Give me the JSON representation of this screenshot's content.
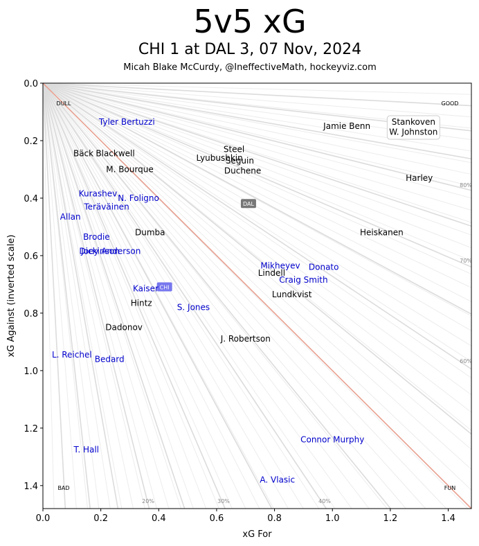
{
  "header": {
    "title": "5v5 xG",
    "subtitle": "CHI 1 at DAL 3, 07 Nov, 2024",
    "byline": "Micah Blake McCurdy, @IneffectiveMath, hockeyviz.com"
  },
  "colors": {
    "home": "#000000",
    "away": "#0000cc",
    "diagonal": "#e8a090",
    "grid": "#dcdcdc",
    "dal_badge": "#777777",
    "chi_badge": "#7777ee"
  },
  "chart_data": {
    "type": "scatter",
    "xlabel": "xG For",
    "ylabel": "xG Against (inverted scale)",
    "xlim": [
      0,
      1.48
    ],
    "ylim": [
      0,
      1.48
    ],
    "y_inverted": true,
    "xticks": [
      "0.0",
      "0.2",
      "0.4",
      "0.6",
      "0.8",
      "1.0",
      "1.2",
      "1.4"
    ],
    "yticks": [
      "0.0",
      "0.2",
      "0.4",
      "0.6",
      "0.8",
      "1.0",
      "1.2",
      "1.4"
    ],
    "corner_labels": {
      "top_left": "DULL",
      "top_right": "GOOD",
      "bottom_left": "BAD",
      "bottom_right": "FUN"
    },
    "percent_labels": [
      "80%",
      "70%",
      "60%",
      "40%",
      "30%",
      "20%"
    ],
    "teams": [
      {
        "name": "DAL",
        "x": 0.71,
        "y": 0.42
      },
      {
        "name": "CHI",
        "x": 0.42,
        "y": 0.71
      }
    ],
    "series": [
      {
        "name": "DAL",
        "points": [
          {
            "label": "Jamie Benn",
            "x": 1.05,
            "y": 0.15
          },
          {
            "label": "Stankoven",
            "x": 1.28,
            "y": 0.135
          },
          {
            "label": "W. Johnston",
            "x": 1.28,
            "y": 0.17
          },
          {
            "label": "Bäck",
            "x": 0.14,
            "y": 0.245
          },
          {
            "label": "Blackwell",
            "x": 0.25,
            "y": 0.245
          },
          {
            "label": "Steel",
            "x": 0.66,
            "y": 0.23
          },
          {
            "label": "Lyubushkin",
            "x": 0.61,
            "y": 0.26
          },
          {
            "label": "Seguin",
            "x": 0.68,
            "y": 0.27
          },
          {
            "label": "Duchene",
            "x": 0.69,
            "y": 0.305
          },
          {
            "label": "M. Bourque",
            "x": 0.3,
            "y": 0.3
          },
          {
            "label": "Harley",
            "x": 1.3,
            "y": 0.33
          },
          {
            "label": "Heiskanen",
            "x": 1.17,
            "y": 0.52
          },
          {
            "label": "Dumba",
            "x": 0.37,
            "y": 0.52
          },
          {
            "label": "Lindell",
            "x": 0.79,
            "y": 0.66
          },
          {
            "label": "Lundkvist",
            "x": 0.86,
            "y": 0.735
          },
          {
            "label": "Hintz",
            "x": 0.34,
            "y": 0.765
          },
          {
            "label": "Dadonov",
            "x": 0.28,
            "y": 0.85
          },
          {
            "label": "J. Robertson",
            "x": 0.7,
            "y": 0.89
          }
        ]
      },
      {
        "name": "CHI",
        "points": [
          {
            "label": "Tyler Bertuzzi",
            "x": 0.29,
            "y": 0.135
          },
          {
            "label": "Kurashev",
            "x": 0.19,
            "y": 0.385
          },
          {
            "label": "N. Foligno",
            "x": 0.33,
            "y": 0.4
          },
          {
            "label": "Teräväinen",
            "x": 0.22,
            "y": 0.43
          },
          {
            "label": "Allan",
            "x": 0.095,
            "y": 0.465
          },
          {
            "label": "Brodie",
            "x": 0.185,
            "y": 0.535
          },
          {
            "label": "Dickinson",
            "x": 0.195,
            "y": 0.585
          },
          {
            "label": "Joey Anderson",
            "x": 0.235,
            "y": 0.585
          },
          {
            "label": "Mikheyev",
            "x": 0.82,
            "y": 0.635
          },
          {
            "label": "Donato",
            "x": 0.97,
            "y": 0.64
          },
          {
            "label": "Craig Smith",
            "x": 0.9,
            "y": 0.685
          },
          {
            "label": "Kaiser",
            "x": 0.355,
            "y": 0.715
          },
          {
            "label": "S. Jones",
            "x": 0.52,
            "y": 0.78
          },
          {
            "label": "L. Reichel",
            "x": 0.1,
            "y": 0.945
          },
          {
            "label": "Bedard",
            "x": 0.23,
            "y": 0.96
          },
          {
            "label": "Connor Murphy",
            "x": 1.0,
            "y": 1.24
          },
          {
            "label": "T. Hall",
            "x": 0.15,
            "y": 1.275
          },
          {
            "label": "A. Vlasic",
            "x": 0.81,
            "y": 1.38
          }
        ]
      }
    ]
  }
}
